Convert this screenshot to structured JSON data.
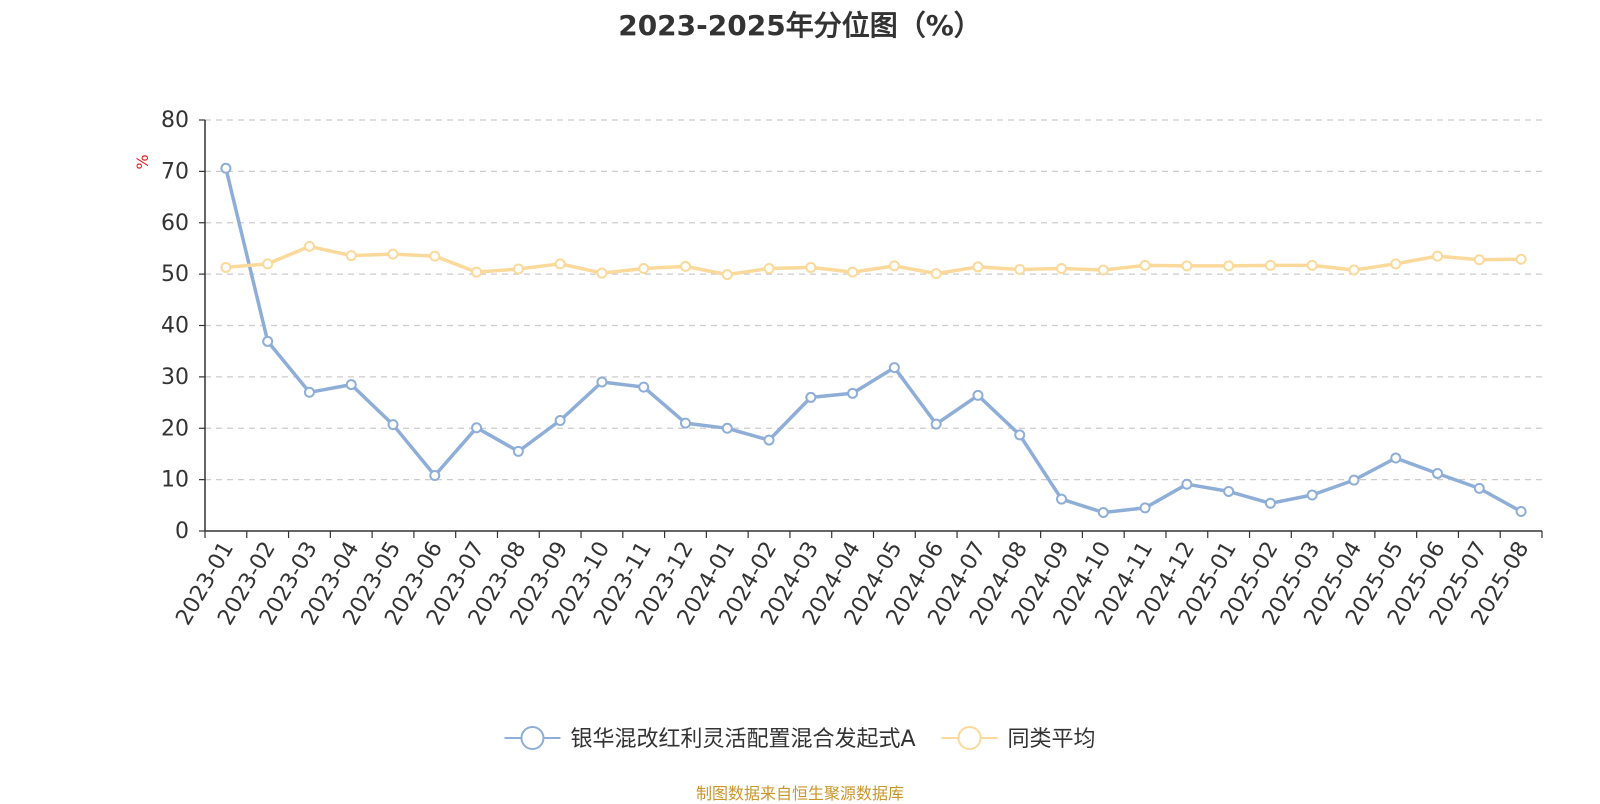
{
  "chart_data": {
    "type": "line",
    "title": "2023-2025年分位图（%）",
    "ylabel": "%",
    "ylim": [
      0,
      80
    ],
    "yticks": [
      0,
      10,
      20,
      30,
      40,
      50,
      60,
      70,
      80
    ],
    "grid": "horizontal-dashed",
    "legend_position": "bottom-center",
    "categories": [
      "2023-01",
      "2023-02",
      "2023-03",
      "2023-04",
      "2023-05",
      "2023-06",
      "2023-07",
      "2023-08",
      "2023-09",
      "2023-10",
      "2023-11",
      "2023-12",
      "2024-01",
      "2024-02",
      "2024-03",
      "2024-04",
      "2024-05",
      "2024-06",
      "2024-07",
      "2024-08",
      "2024-09",
      "2024-10",
      "2024-11",
      "2024-12",
      "2025-01",
      "2025-02",
      "2025-03",
      "2025-04",
      "2025-05",
      "2025-06",
      "2025-07",
      "2025-08"
    ],
    "series": [
      {
        "name": "银华混改红利灵活配置混合发起式A",
        "color": "#8eaed8",
        "values": [
          70.6,
          36.9,
          27.0,
          28.5,
          20.7,
          10.8,
          20.1,
          15.5,
          21.5,
          29.0,
          28.0,
          21.0,
          20.0,
          17.7,
          26.0,
          26.8,
          31.8,
          20.8,
          26.4,
          18.7,
          6.2,
          3.6,
          4.5,
          9.1,
          7.7,
          5.4,
          7.0,
          9.9,
          14.2,
          11.2,
          8.3,
          3.8
        ]
      },
      {
        "name": "同类平均",
        "color": "#fbd99b",
        "values": [
          51.3,
          52.0,
          55.4,
          53.6,
          53.9,
          53.5,
          50.4,
          51.0,
          52.0,
          50.2,
          51.1,
          51.5,
          49.9,
          51.1,
          51.3,
          50.4,
          51.6,
          50.1,
          51.4,
          50.9,
          51.1,
          50.8,
          51.7,
          51.6,
          51.6,
          51.7,
          51.7,
          50.8,
          52.0,
          53.5,
          52.8,
          52.9
        ]
      }
    ]
  },
  "footer": {
    "source": "制图数据来自恒生聚源数据库"
  }
}
